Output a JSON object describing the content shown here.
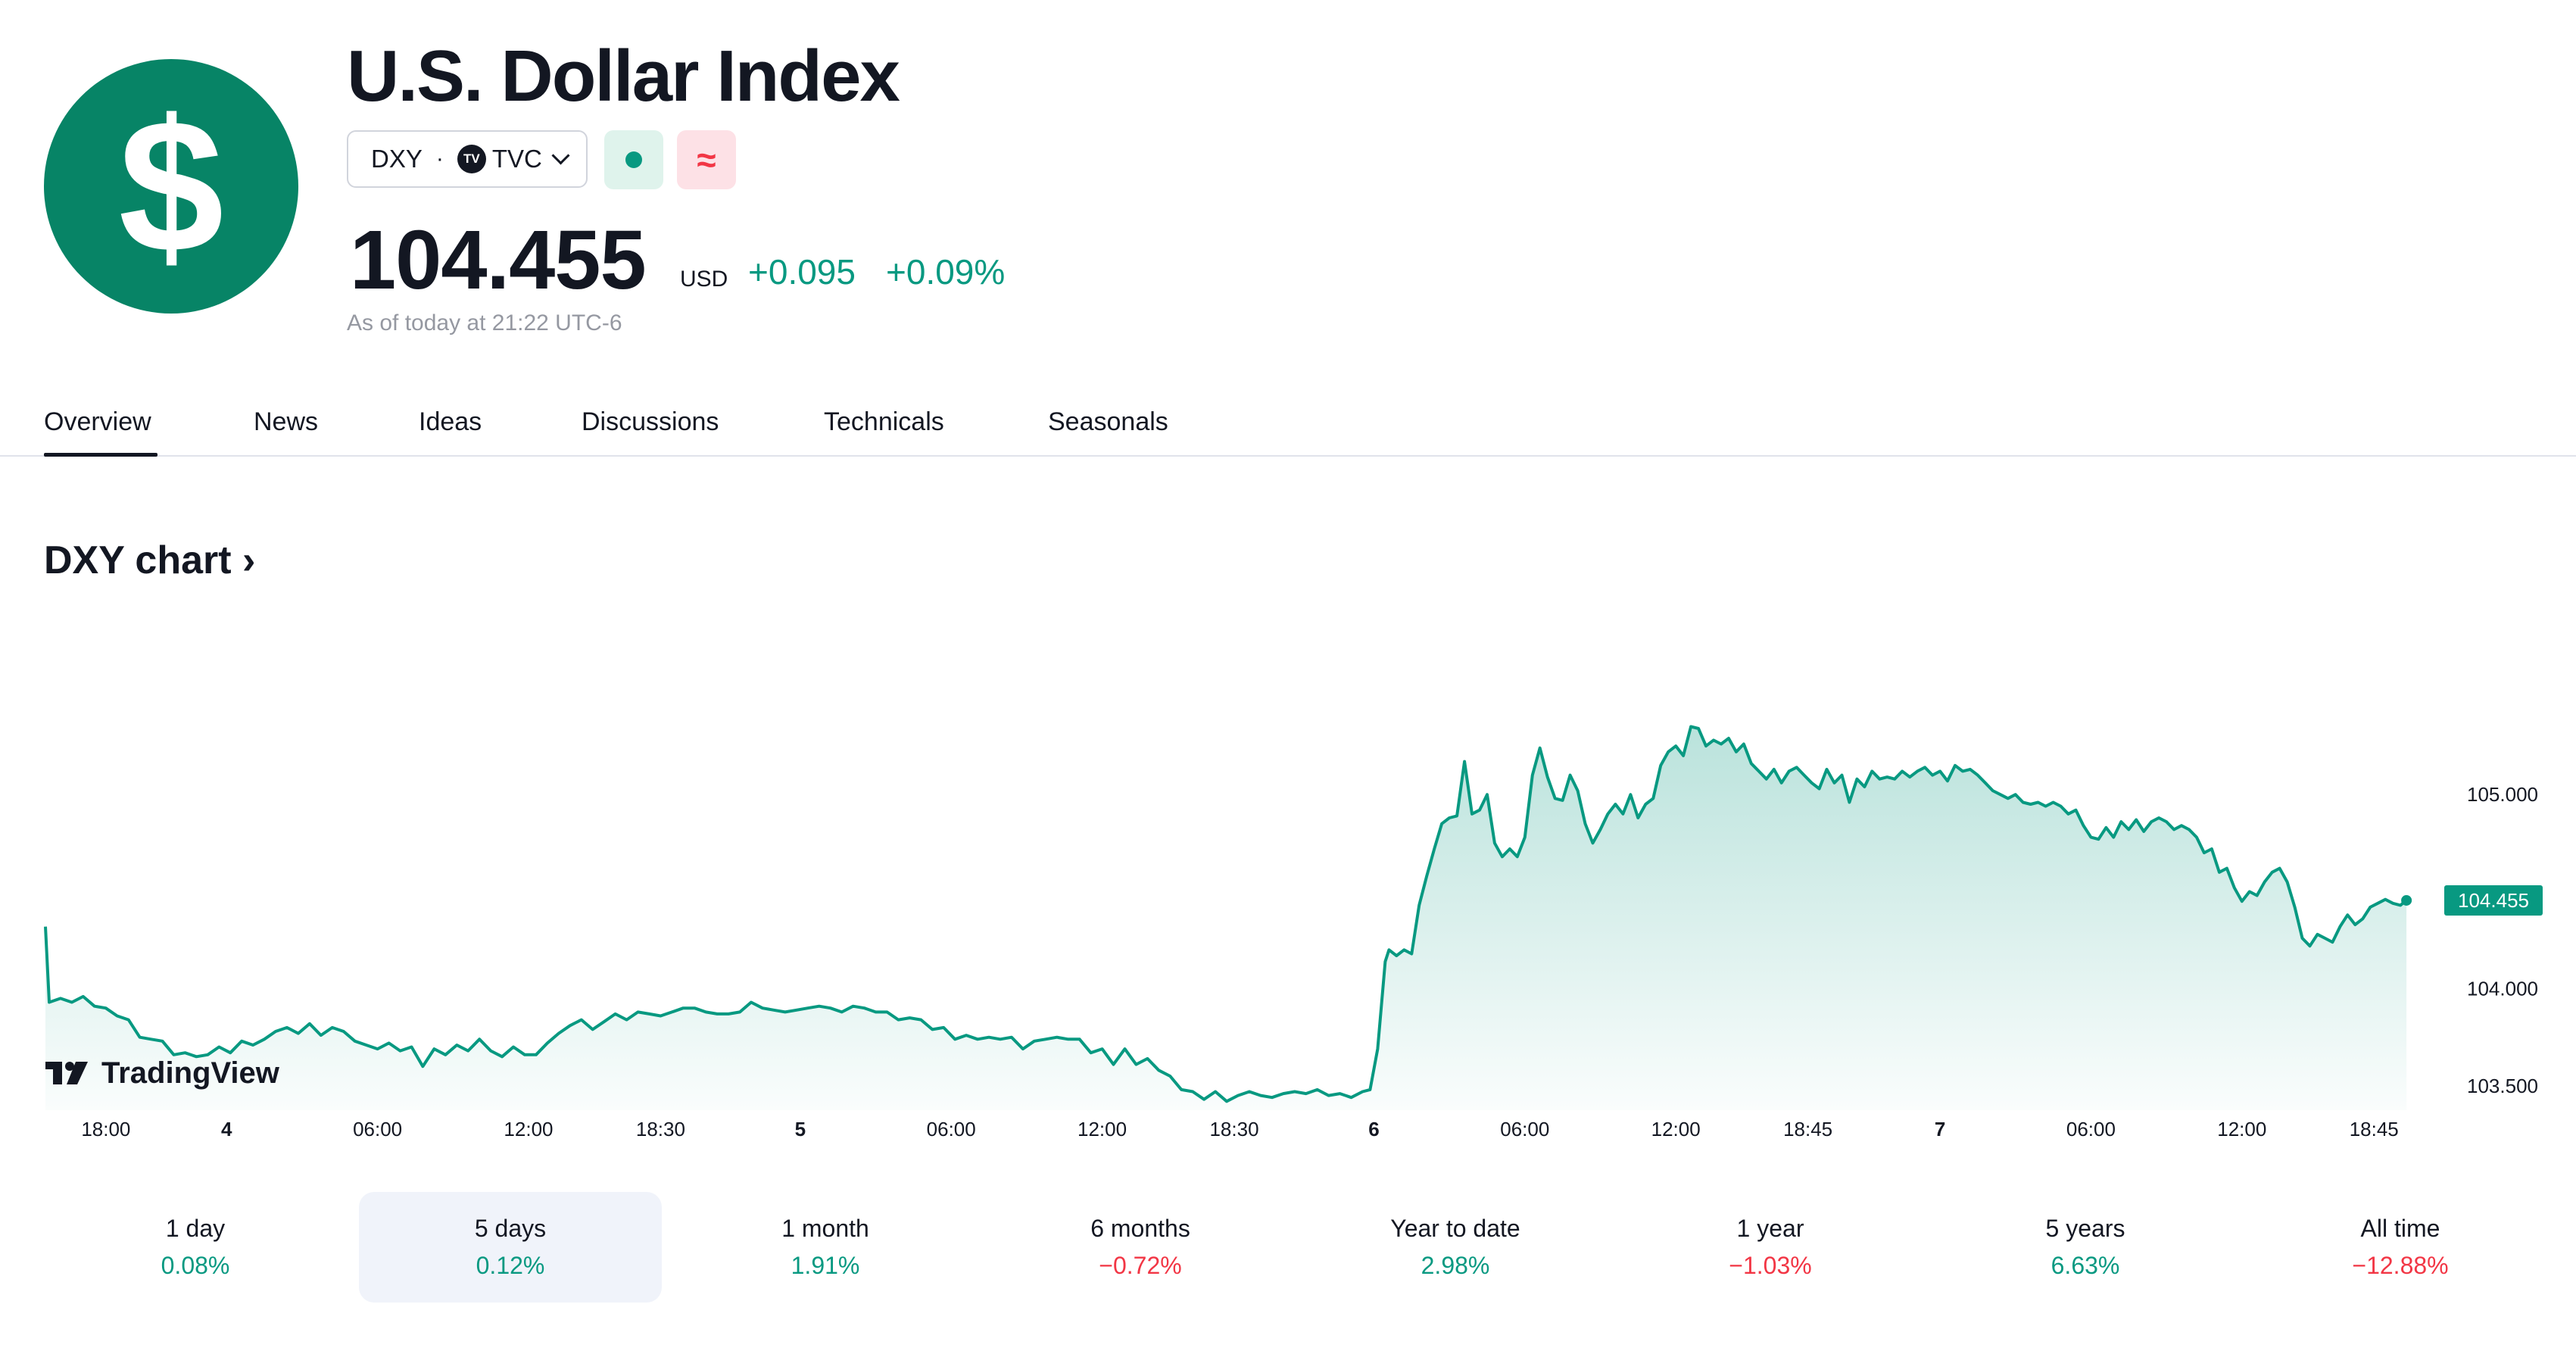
{
  "header": {
    "title": "U.S. Dollar Index",
    "logo_symbol": "$",
    "symbol": "DXY",
    "separator": "·",
    "exchange_badge": "TV",
    "exchange": "TVC",
    "delay_symbol": "≈",
    "price": "104.455",
    "currency": "USD",
    "change_abs": "+0.095",
    "change_pct": "+0.09%",
    "as_of": "As of today at 21:22 UTC-6"
  },
  "colors": {
    "brand": "#078466",
    "up": "#089981",
    "down": "#f23645",
    "text": "#131722",
    "muted": "#9598a1"
  },
  "tabs": [
    {
      "label": "Overview",
      "active": true
    },
    {
      "label": "News"
    },
    {
      "label": "Ideas"
    },
    {
      "label": "Discussions"
    },
    {
      "label": "Technicals"
    },
    {
      "label": "Seasonals"
    }
  ],
  "chart_heading": "DXY chart ›",
  "watermark": "TradingView",
  "chart_data": {
    "type": "area",
    "x_ticks": [
      {
        "label": "18:00",
        "x": 0,
        "bold": false
      },
      {
        "label": "4",
        "x": 20,
        "bold": true
      },
      {
        "label": "06:00",
        "x": 40,
        "bold": false
      },
      {
        "label": "12:00",
        "x": 60,
        "bold": false
      },
      {
        "label": "18:30",
        "x": 77.5,
        "bold": false
      },
      {
        "label": "5",
        "x": 96,
        "bold": true
      },
      {
        "label": "06:00",
        "x": 116,
        "bold": false
      },
      {
        "label": "12:00",
        "x": 136,
        "bold": false
      },
      {
        "label": "18:30",
        "x": 153.5,
        "bold": false
      },
      {
        "label": "6",
        "x": 172,
        "bold": true
      },
      {
        "label": "06:00",
        "x": 192,
        "bold": false
      },
      {
        "label": "12:00",
        "x": 212,
        "bold": false
      },
      {
        "label": "18:45",
        "x": 229.5,
        "bold": false
      },
      {
        "label": "7",
        "x": 247,
        "bold": true
      },
      {
        "label": "06:00",
        "x": 267,
        "bold": false
      },
      {
        "label": "12:00",
        "x": 287,
        "bold": false
      },
      {
        "label": "18:45",
        "x": 304.5,
        "bold": false
      }
    ],
    "y_ticks": [
      {
        "label": "105.000",
        "value": 105.0
      },
      {
        "label": "104.000",
        "value": 104.0
      },
      {
        "label": "103.500",
        "value": 103.5
      }
    ],
    "xlim": [
      -4,
      312
    ],
    "ylim": [
      103.39,
      106.05
    ],
    "last_price_label": "104.455",
    "last_value": 104.455,
    "series": [
      {
        "points": [
          [
            -4,
            104.32
          ],
          [
            -3.5,
            103.93
          ],
          [
            -2,
            103.95
          ],
          [
            -0.5,
            103.93
          ],
          [
            1,
            103.96
          ],
          [
            2.5,
            103.91
          ],
          [
            4,
            103.9
          ],
          [
            5.5,
            103.86
          ],
          [
            7,
            103.84
          ],
          [
            8.5,
            103.75
          ],
          [
            10,
            103.74
          ],
          [
            11.5,
            103.73
          ],
          [
            13,
            103.66
          ],
          [
            14.5,
            103.67
          ],
          [
            16,
            103.65
          ],
          [
            17.5,
            103.66
          ],
          [
            19,
            103.7
          ],
          [
            20.5,
            103.67
          ],
          [
            22,
            103.73
          ],
          [
            23.5,
            103.71
          ],
          [
            25,
            103.74
          ],
          [
            26.5,
            103.78
          ],
          [
            28,
            103.8
          ],
          [
            29.5,
            103.77
          ],
          [
            31,
            103.82
          ],
          [
            32.5,
            103.76
          ],
          [
            34,
            103.8
          ],
          [
            35.5,
            103.78
          ],
          [
            37,
            103.73
          ],
          [
            38.5,
            103.71
          ],
          [
            40,
            103.69
          ],
          [
            41.5,
            103.72
          ],
          [
            43,
            103.68
          ],
          [
            44.5,
            103.7
          ],
          [
            46,
            103.6
          ],
          [
            47.5,
            103.69
          ],
          [
            49,
            103.66
          ],
          [
            50.5,
            103.71
          ],
          [
            52,
            103.68
          ],
          [
            53.5,
            103.74
          ],
          [
            55,
            103.68
          ],
          [
            56.5,
            103.65
          ],
          [
            58,
            103.7
          ],
          [
            59.5,
            103.66
          ],
          [
            61,
            103.66
          ],
          [
            62.5,
            103.72
          ],
          [
            64,
            103.77
          ],
          [
            65.5,
            103.81
          ],
          [
            67,
            103.84
          ],
          [
            68.5,
            103.79
          ],
          [
            70,
            103.83
          ],
          [
            71.5,
            103.87
          ],
          [
            73,
            103.84
          ],
          [
            74.5,
            103.88
          ],
          [
            76,
            103.87
          ],
          [
            77.5,
            103.86
          ],
          [
            79,
            103.88
          ],
          [
            80.5,
            103.9
          ],
          [
            82,
            103.9
          ],
          [
            83.5,
            103.88
          ],
          [
            85,
            103.87
          ],
          [
            86.5,
            103.87
          ],
          [
            88,
            103.88
          ],
          [
            89.5,
            103.93
          ],
          [
            91,
            103.9
          ],
          [
            92.5,
            103.89
          ],
          [
            94,
            103.88
          ],
          [
            95.5,
            103.89
          ],
          [
            97,
            103.9
          ],
          [
            98.5,
            103.91
          ],
          [
            100,
            103.9
          ],
          [
            101.5,
            103.88
          ],
          [
            103,
            103.91
          ],
          [
            104.5,
            103.9
          ],
          [
            106,
            103.88
          ],
          [
            107.5,
            103.88
          ],
          [
            109,
            103.84
          ],
          [
            110.5,
            103.85
          ],
          [
            112,
            103.84
          ],
          [
            113.5,
            103.79
          ],
          [
            115,
            103.8
          ],
          [
            116.5,
            103.74
          ],
          [
            118,
            103.76
          ],
          [
            119.5,
            103.74
          ],
          [
            121,
            103.75
          ],
          [
            122.5,
            103.74
          ],
          [
            124,
            103.75
          ],
          [
            125.5,
            103.69
          ],
          [
            127,
            103.73
          ],
          [
            128.5,
            103.74
          ],
          [
            130,
            103.75
          ],
          [
            131.5,
            103.74
          ],
          [
            133,
            103.74
          ],
          [
            134.5,
            103.67
          ],
          [
            136,
            103.69
          ],
          [
            137.5,
            103.61
          ],
          [
            139,
            103.69
          ],
          [
            140.5,
            103.61
          ],
          [
            142,
            103.64
          ],
          [
            143.5,
            103.58
          ],
          [
            145,
            103.55
          ],
          [
            146.5,
            103.48
          ],
          [
            148,
            103.47
          ],
          [
            149.5,
            103.43
          ],
          [
            151,
            103.47
          ],
          [
            152.5,
            103.42
          ],
          [
            154,
            103.45
          ],
          [
            155.5,
            103.47
          ],
          [
            157,
            103.45
          ],
          [
            158.5,
            103.44
          ],
          [
            160,
            103.46
          ],
          [
            161.5,
            103.47
          ],
          [
            163,
            103.46
          ],
          [
            164.5,
            103.48
          ],
          [
            166,
            103.45
          ],
          [
            167.5,
            103.46
          ],
          [
            169,
            103.44
          ],
          [
            170.5,
            103.47
          ],
          [
            171.5,
            103.48
          ],
          [
            172.5,
            103.69
          ],
          [
            173.5,
            104.14
          ],
          [
            174,
            104.2
          ],
          [
            175,
            104.17
          ],
          [
            176,
            104.2
          ],
          [
            177,
            104.18
          ],
          [
            178,
            104.43
          ],
          [
            179,
            104.58
          ],
          [
            180,
            104.72
          ],
          [
            181,
            104.85
          ],
          [
            182,
            104.88
          ],
          [
            183,
            104.89
          ],
          [
            184,
            105.17
          ],
          [
            185,
            104.9
          ],
          [
            186,
            104.92
          ],
          [
            187,
            105.0
          ],
          [
            188,
            104.75
          ],
          [
            189,
            104.68
          ],
          [
            190,
            104.72
          ],
          [
            191,
            104.68
          ],
          [
            192,
            104.78
          ],
          [
            193,
            105.1
          ],
          [
            194,
            105.24
          ],
          [
            195,
            105.09
          ],
          [
            196,
            104.98
          ],
          [
            197,
            104.97
          ],
          [
            198,
            105.1
          ],
          [
            199,
            105.02
          ],
          [
            200,
            104.85
          ],
          [
            201,
            104.75
          ],
          [
            202,
            104.82
          ],
          [
            203,
            104.9
          ],
          [
            204,
            104.95
          ],
          [
            205,
            104.9
          ],
          [
            206,
            105.0
          ],
          [
            207,
            104.88
          ],
          [
            208,
            104.95
          ],
          [
            209,
            104.98
          ],
          [
            210,
            105.15
          ],
          [
            211,
            105.22
          ],
          [
            212,
            105.25
          ],
          [
            213,
            105.2
          ],
          [
            214,
            105.35
          ],
          [
            215,
            105.34
          ],
          [
            216,
            105.25
          ],
          [
            217,
            105.28
          ],
          [
            218,
            105.26
          ],
          [
            219,
            105.29
          ],
          [
            220,
            105.22
          ],
          [
            221,
            105.26
          ],
          [
            222,
            105.16
          ],
          [
            223,
            105.12
          ],
          [
            224,
            105.08
          ],
          [
            225,
            105.13
          ],
          [
            226,
            105.06
          ],
          [
            227,
            105.12
          ],
          [
            228,
            105.14
          ],
          [
            229,
            105.1
          ],
          [
            230,
            105.06
          ],
          [
            231,
            105.03
          ],
          [
            232,
            105.13
          ],
          [
            233,
            105.06
          ],
          [
            234,
            105.1
          ],
          [
            235,
            104.96
          ],
          [
            236,
            105.08
          ],
          [
            237,
            105.04
          ],
          [
            238,
            105.12
          ],
          [
            239,
            105.08
          ],
          [
            240,
            105.09
          ],
          [
            241,
            105.08
          ],
          [
            242,
            105.12
          ],
          [
            243,
            105.09
          ],
          [
            244,
            105.12
          ],
          [
            245,
            105.14
          ],
          [
            246,
            105.1
          ],
          [
            247,
            105.12
          ],
          [
            248,
            105.07
          ],
          [
            249,
            105.15
          ],
          [
            250,
            105.12
          ],
          [
            251,
            105.13
          ],
          [
            252,
            105.1
          ],
          [
            253,
            105.06
          ],
          [
            254,
            105.02
          ],
          [
            255,
            105.0
          ],
          [
            256,
            104.98
          ],
          [
            257,
            105.0
          ],
          [
            258,
            104.96
          ],
          [
            259,
            104.95
          ],
          [
            260,
            104.96
          ],
          [
            261,
            104.94
          ],
          [
            262,
            104.96
          ],
          [
            263,
            104.94
          ],
          [
            264,
            104.9
          ],
          [
            265,
            104.92
          ],
          [
            266,
            104.84
          ],
          [
            267,
            104.78
          ],
          [
            268,
            104.77
          ],
          [
            269,
            104.83
          ],
          [
            270,
            104.78
          ],
          [
            271,
            104.86
          ],
          [
            272,
            104.82
          ],
          [
            273,
            104.87
          ],
          [
            274,
            104.81
          ],
          [
            275,
            104.86
          ],
          [
            276,
            104.88
          ],
          [
            277,
            104.86
          ],
          [
            278,
            104.82
          ],
          [
            279,
            104.84
          ],
          [
            280,
            104.82
          ],
          [
            281,
            104.78
          ],
          [
            282,
            104.7
          ],
          [
            283,
            104.72
          ],
          [
            284,
            104.6
          ],
          [
            285,
            104.62
          ],
          [
            286,
            104.52
          ],
          [
            287,
            104.45
          ],
          [
            288,
            104.5
          ],
          [
            289,
            104.48
          ],
          [
            290,
            104.55
          ],
          [
            291,
            104.6
          ],
          [
            292,
            104.62
          ],
          [
            293,
            104.55
          ],
          [
            294,
            104.42
          ],
          [
            295,
            104.26
          ],
          [
            296,
            104.22
          ],
          [
            297,
            104.28
          ],
          [
            298,
            104.26
          ],
          [
            299,
            104.24
          ],
          [
            300,
            104.32
          ],
          [
            301,
            104.38
          ],
          [
            302,
            104.33
          ],
          [
            303,
            104.36
          ],
          [
            304,
            104.42
          ],
          [
            305,
            104.44
          ],
          [
            306,
            104.46
          ],
          [
            307,
            104.44
          ],
          [
            308,
            104.43
          ],
          [
            308.8,
            104.455
          ]
        ]
      }
    ]
  },
  "periods": [
    {
      "label": "1 day",
      "value": "0.08%",
      "dir": "up",
      "selected": false
    },
    {
      "label": "5 days",
      "value": "0.12%",
      "dir": "up",
      "selected": true
    },
    {
      "label": "1 month",
      "value": "1.91%",
      "dir": "up",
      "selected": false
    },
    {
      "label": "6 months",
      "value": "−0.72%",
      "dir": "down",
      "selected": false
    },
    {
      "label": "Year to date",
      "value": "2.98%",
      "dir": "up",
      "selected": false
    },
    {
      "label": "1 year",
      "value": "−1.03%",
      "dir": "down",
      "selected": false
    },
    {
      "label": "5 years",
      "value": "6.63%",
      "dir": "up",
      "selected": false
    },
    {
      "label": "All time",
      "value": "−12.88%",
      "dir": "down",
      "selected": false
    }
  ]
}
